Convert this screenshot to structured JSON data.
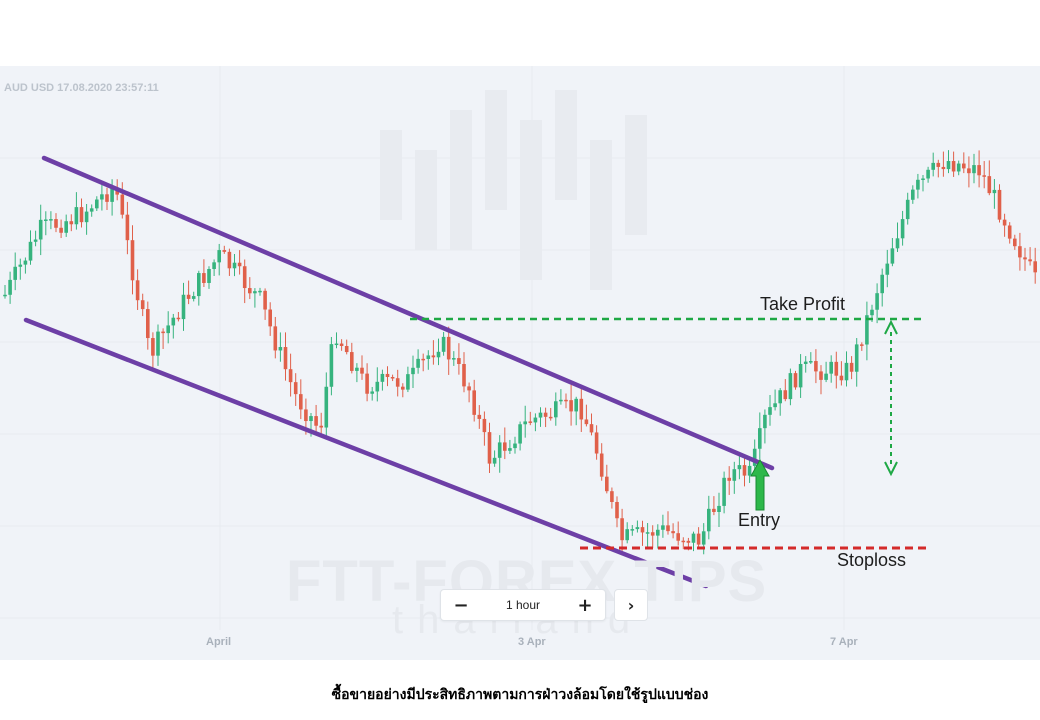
{
  "chart_data": {
    "type": "candlestick",
    "symbol_label": "AUD USD  17.08.2020 23:57:11",
    "x_ticks": [
      "April",
      "3 Apr",
      "7 Apr"
    ],
    "annotations": {
      "take_profit": "Take Profit",
      "entry": "Entry",
      "stoploss": "Stoploss"
    },
    "colors": {
      "up": "#36b37e",
      "down": "#e0604a",
      "channel": "#6d3fa6",
      "take_profit_line": "#1ea845",
      "stoploss_line": "#d42a2a",
      "entry_arrow": "#2db84a"
    },
    "grid": true
  },
  "watermark": {
    "brand": "FTT-FOREX TIPS",
    "sub": "thailand"
  },
  "timeframe": {
    "minus_label": "−",
    "plus_label": "+",
    "value": "1 hour",
    "next_label": "›"
  },
  "caption": "ซื้อขายอย่างมีประสิทธิภาพตามการฝ่าวงล้อมโดยใช้รูปแบบช่อง"
}
